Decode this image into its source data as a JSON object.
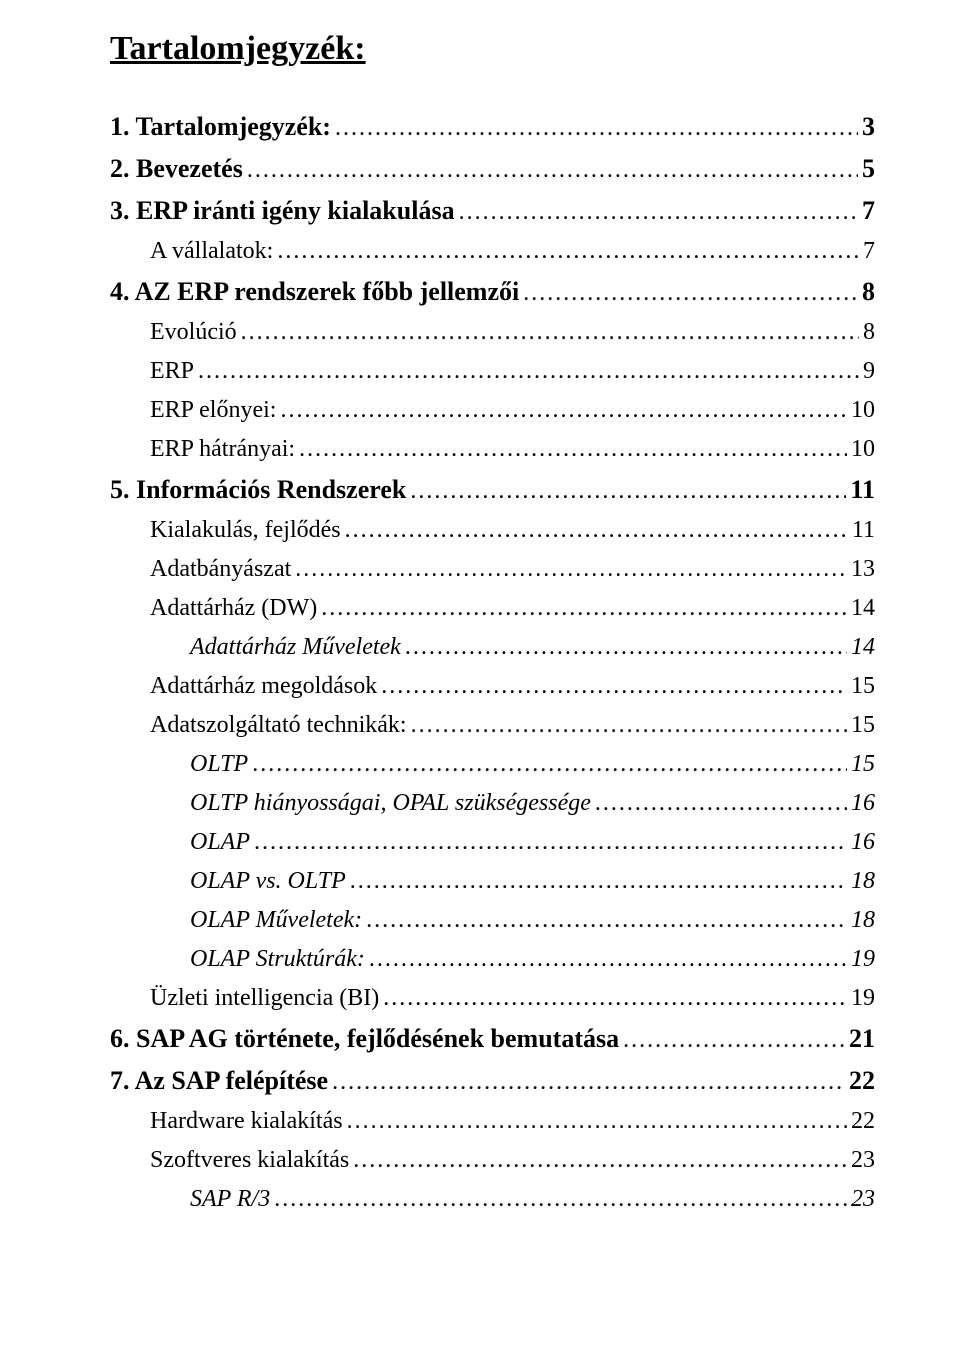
{
  "title": "Tartalomjegyzék:",
  "entries": [
    {
      "label": "1. Tartalomjegyzék:",
      "page": "3",
      "indent": 0,
      "bold": true,
      "italic": false
    },
    {
      "label": "2. Bevezetés",
      "page": "5",
      "indent": 0,
      "bold": true,
      "italic": false
    },
    {
      "label": "3. ERP iránti igény kialakulása",
      "page": "7",
      "indent": 0,
      "bold": true,
      "italic": false
    },
    {
      "label": "A vállalatok:",
      "page": "7",
      "indent": 1,
      "bold": false,
      "italic": false
    },
    {
      "label": "4. AZ ERP rendszerek főbb jellemzői",
      "page": "8",
      "indent": 0,
      "bold": true,
      "italic": false
    },
    {
      "label": "Evolúció",
      "page": "8",
      "indent": 1,
      "bold": false,
      "italic": false
    },
    {
      "label": "ERP",
      "page": "9",
      "indent": 1,
      "bold": false,
      "italic": false
    },
    {
      "label": "ERP előnyei:",
      "page": "10",
      "indent": 1,
      "bold": false,
      "italic": false
    },
    {
      "label": "ERP hátrányai:",
      "page": "10",
      "indent": 1,
      "bold": false,
      "italic": false
    },
    {
      "label": "5. Információs Rendszerek",
      "page": "11",
      "indent": 0,
      "bold": true,
      "italic": false
    },
    {
      "label": "Kialakulás, fejlődés",
      "page": "11",
      "indent": 1,
      "bold": false,
      "italic": false
    },
    {
      "label": "Adatbányászat",
      "page": "13",
      "indent": 1,
      "bold": false,
      "italic": false
    },
    {
      "label": "Adattárház (DW)",
      "page": "14",
      "indent": 1,
      "bold": false,
      "italic": false
    },
    {
      "label": "Adattárház Műveletek",
      "page": "14",
      "indent": 2,
      "bold": false,
      "italic": true
    },
    {
      "label": "Adattárház megoldások",
      "page": "15",
      "indent": 1,
      "bold": false,
      "italic": false
    },
    {
      "label": "Adatszolgáltató technikák:",
      "page": "15",
      "indent": 1,
      "bold": false,
      "italic": false
    },
    {
      "label": "OLTP",
      "page": "15",
      "indent": 2,
      "bold": false,
      "italic": true
    },
    {
      "label": "OLTP hiányosságai, OPAL szükségessége",
      "page": "16",
      "indent": 2,
      "bold": false,
      "italic": true
    },
    {
      "label": "OLAP",
      "page": "16",
      "indent": 2,
      "bold": false,
      "italic": true
    },
    {
      "label": "OLAP vs. OLTP",
      "page": "18",
      "indent": 2,
      "bold": false,
      "italic": true
    },
    {
      "label": "OLAP Műveletek:",
      "page": "18",
      "indent": 2,
      "bold": false,
      "italic": true
    },
    {
      "label": "OLAP Struktúrák:",
      "page": "19",
      "indent": 2,
      "bold": false,
      "italic": true
    },
    {
      "label": "Üzleti intelligencia (BI)",
      "page": "19",
      "indent": 1,
      "bold": false,
      "italic": false
    },
    {
      "label": "6. SAP AG története, fejlődésének bemutatása",
      "page": "21",
      "indent": 0,
      "bold": true,
      "italic": false
    },
    {
      "label": "7. Az SAP felépítése",
      "page": "22",
      "indent": 0,
      "bold": true,
      "italic": false
    },
    {
      "label": "Hardware kialakítás",
      "page": "22",
      "indent": 1,
      "bold": false,
      "italic": false
    },
    {
      "label": "Szoftveres kialakítás",
      "page": "23",
      "indent": 1,
      "bold": false,
      "italic": false
    },
    {
      "label": "SAP R/3",
      "page": "23",
      "indent": 2,
      "bold": false,
      "italic": true
    }
  ]
}
